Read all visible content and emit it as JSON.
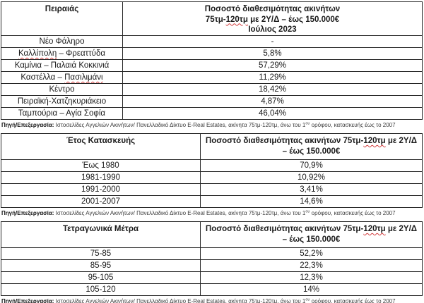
{
  "colors": {
    "spellcheck_underline": "#d43f3f",
    "table_border": "#262626",
    "text": "#1a1a1a",
    "note_text": "#3c3c3c"
  },
  "piraeus_table": {
    "col1_header": "Πειραιάς",
    "col2_header": {
      "line1": "Ποσοστό διαθεσιμότητας ακινήτων",
      "line2_pre": "75τμ-",
      "line2_misspelled": "120τμ",
      "line2_post": " με 2Υ/Δ – έως 150.000€",
      "line3": "Ιούλιος 2023"
    },
    "rows": [
      {
        "area": "Νέο Φάληρο",
        "value": "-"
      },
      {
        "area_misspelled": "Καλλίπολη",
        "area_rest": " – Φρεαττύδα",
        "value": "5,8%"
      },
      {
        "area": "Καμίνια – Παλαιά Κοκκινιά",
        "value": "57,29%"
      },
      {
        "area_pre": "Καστέλλα – ",
        "area_misspelled": "Πασιλιμάνι",
        "value": "11,29%"
      },
      {
        "area": "Κέντρο",
        "value": "18,42%"
      },
      {
        "area": "Πειραϊκή-Χατζηκυριάκειο",
        "value": "4,87%"
      },
      {
        "area": "Ταμπούρια – Αγία Σοφία",
        "value": "46,04%"
      }
    ]
  },
  "construction_year_table": {
    "col1_header": "Έτος Κατασκευής",
    "col2_header": {
      "line1_pre": "Ποσοστό διαθεσιμότητας ακινήτων 75τμ-",
      "line1_misspelled": "120τμ",
      "line1_post": " με 2Υ/Δ",
      "line2": "– έως 150.000€"
    },
    "rows": [
      {
        "label": "Έως 1980",
        "value": "70,9%"
      },
      {
        "label": "1981-1990",
        "value": "10,92%"
      },
      {
        "label": "1991-2000",
        "value": "3,41%"
      },
      {
        "label": "2001-2007",
        "value": "14,6%"
      }
    ]
  },
  "square_meters_table": {
    "col1_header": "Τετραγωνικά Μέτρα",
    "col2_header": {
      "line1_pre": "Ποσοστό διαθεσιμότητας ακινήτων 75τμ-",
      "line1_misspelled": "120τμ",
      "line1_post": " με 2Υ/Δ",
      "line2": "– έως 150.000€"
    },
    "rows": [
      {
        "label": "75-85",
        "value": "52,2%"
      },
      {
        "label": "85-95",
        "value": "22,3%"
      },
      {
        "label": "95-105",
        "value": "12,3%"
      },
      {
        "label": "105-120",
        "value": "14%"
      }
    ]
  },
  "source_note": {
    "label": "Πηγή/Επεξεργασία:",
    "text_before_sup": " Ιστοσελίδες Αγγελιών Ακινήτων/ Πανελλαδικό Δίκτυο E-Real Estates, ακίνητα 75τμ-120τμ, άνω του 1",
    "superscript": "ου",
    "text_after_sup": " ορόφου, κατασκευής έως το 2007"
  }
}
